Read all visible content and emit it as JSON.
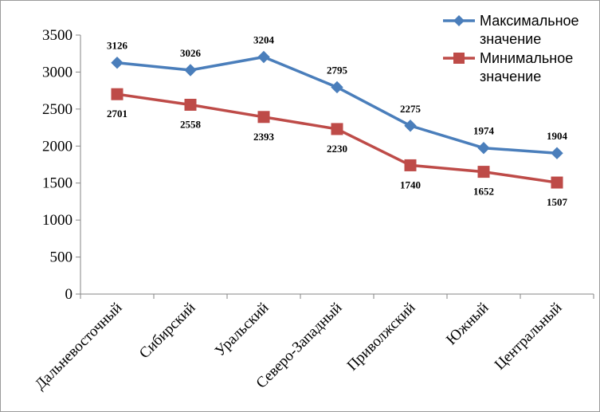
{
  "chart_data": {
    "type": "line",
    "categories": [
      "Дальневосточный",
      "Сибирский",
      "Уральский",
      "Северо-Западный",
      "Приволжский",
      "Южный",
      "Центральный"
    ],
    "series": [
      {
        "name": "Максимальное значение",
        "name_lines": [
          "Максимальное",
          "значение"
        ],
        "color": "#4a7ebb",
        "marker": "diamond",
        "values": [
          3126,
          3026,
          3204,
          2795,
          2275,
          1974,
          1904
        ]
      },
      {
        "name": "Минимальное значение",
        "name_lines": [
          "Минимальное",
          "значение"
        ],
        "color": "#be4b48",
        "marker": "square",
        "values": [
          2701,
          2558,
          2393,
          2230,
          1740,
          1652,
          1507
        ]
      }
    ],
    "ylim": [
      0,
      3500
    ],
    "yticks": [
      0,
      500,
      1000,
      1500,
      2000,
      2500,
      3000,
      3500
    ],
    "title": "",
    "xlabel": "",
    "ylabel": "",
    "legend_position": "top-right",
    "grid": false
  }
}
